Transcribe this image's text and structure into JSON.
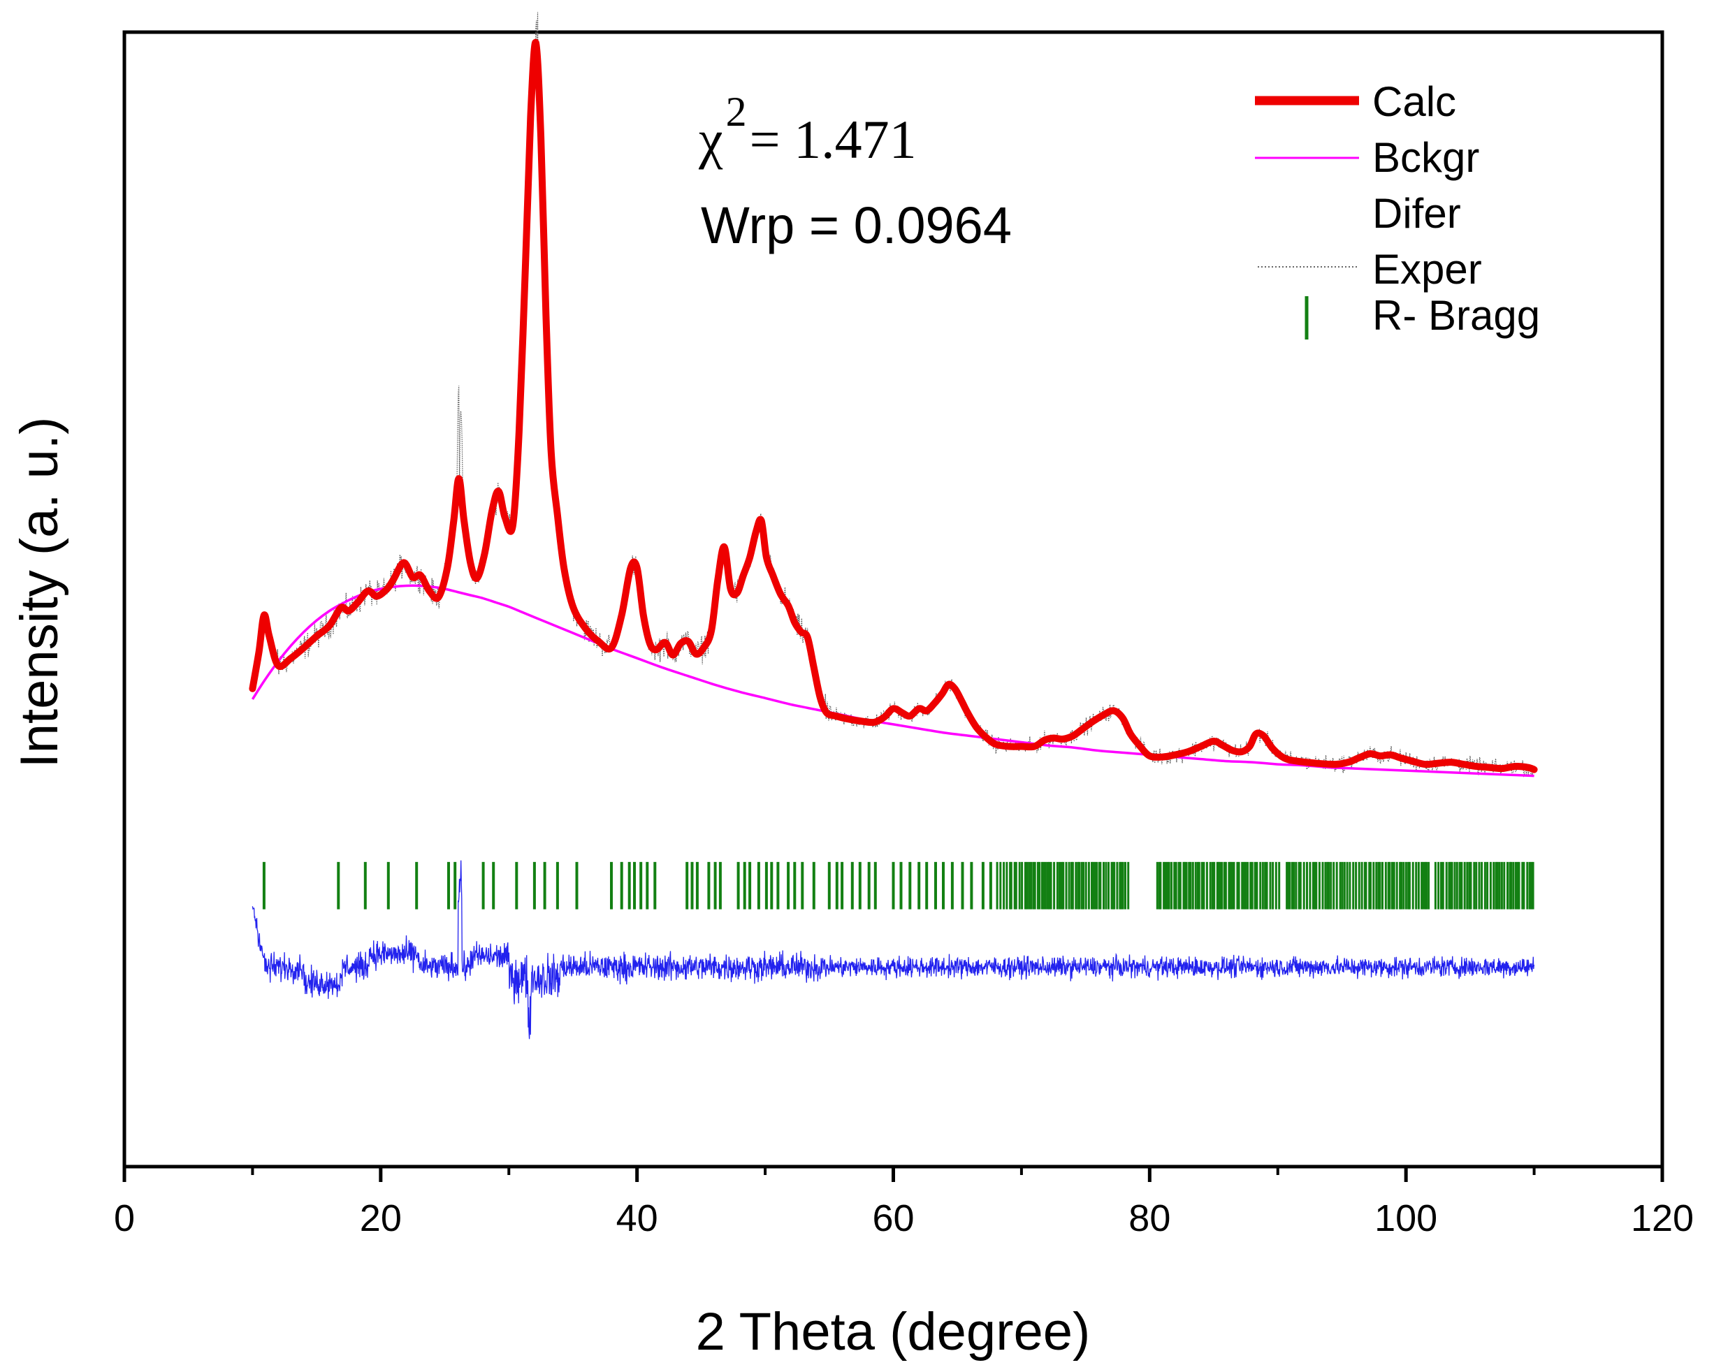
{
  "chart_data": {
    "type": "line",
    "title": "",
    "xlabel": "2 Theta (degree)",
    "ylabel": "Intensity (a. u.)",
    "xlim": [
      0,
      120
    ],
    "xticks": [
      0,
      20,
      40,
      60,
      80,
      100,
      120
    ],
    "xtick_labels": [
      "0",
      "20",
      "40",
      "60",
      "80",
      "100",
      "120"
    ],
    "ylim": [
      -8,
      100
    ],
    "y_tick_labels_shown": false,
    "grid": false,
    "legend_position": "top-right",
    "annotations": {
      "chi_symbol": "χ",
      "chi_exponent": "2",
      "chi_value": "= 1.471",
      "wrp": "Wrp = 0.0964"
    },
    "legend": [
      {
        "label": "Calc",
        "color": "#ee0000",
        "style": "thick-line"
      },
      {
        "label": "Bckgr",
        "color": "#ff00ff",
        "style": "thin-line"
      },
      {
        "label": "Difer",
        "color": "#2222ee",
        "style": "none"
      },
      {
        "label": "Exper",
        "color": "#555555",
        "style": "dotted"
      },
      {
        "label": "R- Bragg",
        "color": "#138013",
        "style": "tick"
      }
    ],
    "series": [
      {
        "name": "Calc",
        "color": "#ee0000",
        "x": [
          10,
          10.5,
          10.9,
          11.3,
          12,
          13,
          14,
          15,
          16,
          16.9,
          17.5,
          18.2,
          19,
          19.7,
          20.5,
          21,
          21.8,
          22.5,
          23.1,
          23.8,
          24.5,
          25.2,
          25.7,
          26.1,
          26.5,
          27,
          27.5,
          28.1,
          28.7,
          29.2,
          29.7,
          30.3,
          30.8,
          31.3,
          31.7,
          32.1,
          32.5,
          32.9,
          33.3,
          33.8,
          34.3,
          35,
          36,
          37,
          38,
          38.8,
          39.5,
          40,
          40.5,
          41,
          41.5,
          42.2,
          42.8,
          43.4,
          44,
          44.6,
          45.2,
          45.8,
          46.3,
          46.8,
          47.3,
          47.8,
          48.3,
          48.8,
          49.3,
          49.7,
          50.1,
          50.6,
          51.2,
          51.8,
          52.3,
          52.8,
          53.3,
          53.8,
          54.3,
          54.8,
          55.5,
          56.5,
          57.5,
          58.5,
          59.3,
          60,
          60.7,
          61.3,
          62,
          62.6,
          63.2,
          63.8,
          64.3,
          64.8,
          65.3,
          65.8,
          66.5,
          67.3,
          68,
          69,
          70,
          71,
          71.8,
          72.5,
          73.2,
          74,
          74.8,
          75.6,
          76.4,
          77.2,
          77.9,
          78.5,
          79.2,
          80,
          81,
          82,
          83,
          84,
          85,
          85.7,
          86.5,
          87.2,
          87.8,
          88.3,
          88.9,
          89.6,
          90.5,
          91.5,
          93,
          94.5,
          95.5,
          96.3,
          97.2,
          98,
          98.8,
          99.6,
          100.5,
          101.5,
          102.5,
          103.5,
          104.5,
          105.5,
          106.5,
          107.5,
          108.5,
          109.5,
          110
        ],
        "y": [
          37.5,
          41,
          44.5,
          42.5,
          39.7,
          40.4,
          41.4,
          42.5,
          43.5,
          45.2,
          44.9,
          45.7,
          46.8,
          46.3,
          47.0,
          47.9,
          49.5,
          48.1,
          48.3,
          46.8,
          46.2,
          49.0,
          53.5,
          57.5,
          53.5,
          49.5,
          48.0,
          50.3,
          54.5,
          56.3,
          53.8,
          53.0,
          62,
          78,
          92,
          99,
          90,
          73,
          60,
          54,
          49.0,
          45.3,
          43.2,
          42.0,
          41.4,
          44.5,
          49.0,
          49.0,
          44.5,
          41.8,
          41.2,
          41.9,
          40.7,
          41.8,
          42.0,
          40.8,
          41.4,
          43.0,
          47.8,
          51.0,
          47.0,
          46.6,
          48.3,
          50.0,
          52.5,
          53.5,
          50.0,
          48.3,
          46.5,
          45.4,
          43.8,
          42.9,
          42.4,
          39.5,
          36.6,
          35.2,
          34.9,
          34.6,
          34.4,
          34.3,
          34.8,
          35.6,
          35.2,
          34.9,
          35.6,
          35.4,
          36.1,
          37.0,
          37.9,
          37.5,
          36.4,
          35.2,
          33.8,
          32.8,
          32.2,
          32.0,
          32.0,
          32.0,
          32.6,
          32.8,
          32.7,
          33.0,
          33.7,
          34.4,
          35.0,
          35.4,
          34.7,
          33.2,
          32.1,
          31.1,
          31.0,
          31.2,
          31.5,
          32.0,
          32.5,
          32.1,
          31.6,
          31.5,
          32.0,
          33.2,
          33.0,
          31.8,
          30.9,
          30.6,
          30.4,
          30.3,
          30.5,
          30.9,
          31.3,
          31.1,
          31.2,
          30.9,
          30.6,
          30.3,
          30.4,
          30.5,
          30.3,
          30.1,
          30.0,
          29.9,
          30.1,
          30.0,
          29.8
        ]
      },
      {
        "name": "Bckgr",
        "color": "#ff00ff",
        "x": [
          10,
          11,
          12,
          13,
          14,
          15,
          16,
          17,
          18,
          19,
          20,
          21,
          22,
          23,
          24,
          25,
          26,
          27,
          28,
          29,
          30,
          31,
          32,
          33,
          34,
          35,
          36,
          38,
          40,
          42,
          44,
          46,
          48,
          50,
          52,
          54,
          56,
          58,
          60,
          62,
          64,
          66,
          68,
          70,
          72,
          74,
          76,
          78,
          80,
          82,
          84,
          86,
          88,
          90,
          92,
          94,
          96,
          98,
          100,
          102,
          104,
          106,
          108,
          110
        ],
        "y": [
          36.5,
          38.4,
          40.1,
          41.6,
          42.9,
          44.0,
          44.9,
          45.6,
          46.2,
          46.7,
          47.0,
          47.2,
          47.3,
          47.3,
          47.2,
          47.0,
          46.7,
          46.4,
          46.1,
          45.7,
          45.3,
          44.8,
          44.3,
          43.8,
          43.3,
          42.8,
          42.3,
          41.3,
          40.4,
          39.5,
          38.7,
          37.9,
          37.2,
          36.6,
          36.0,
          35.5,
          35.0,
          34.5,
          34.1,
          33.7,
          33.3,
          33.0,
          32.7,
          32.4,
          32.1,
          31.9,
          31.6,
          31.4,
          31.2,
          31.0,
          30.8,
          30.6,
          30.5,
          30.3,
          30.2,
          30.0,
          29.9,
          29.8,
          29.7,
          29.6,
          29.5,
          29.4,
          29.3,
          29.2
        ]
      },
      {
        "name": "Exper",
        "color": "#555555",
        "note": "noisy experimental points scattered around Calc; rendered procedurally as a dotted noisy trace with spikes at 26.2 and 32.3"
      },
      {
        "name": "Difer",
        "color": "#2222ee",
        "baseline_y": 11,
        "note": "difference curve (Exper - Calc) offset to the baseline; rendered procedurally as a dense noisy trace with a spike near 26.2"
      }
    ],
    "bragg_positions": {
      "color": "#138013",
      "y_range": [
        16.5,
        21
      ],
      "discrete": [
        10.9,
        16.7,
        18.8,
        20.6,
        22.8,
        25.3,
        25.8,
        28.0,
        28.8,
        30.6,
        32.0,
        32.8,
        33.8,
        35.3,
        38.0,
        38.8,
        39.4,
        39.8,
        40.3,
        40.8,
        41.4,
        43.9,
        44.3,
        44.7,
        45.6,
        46.1,
        46.5,
        47.9,
        48.4,
        48.8,
        49.5,
        50.1,
        50.5,
        51.0,
        51.8,
        52.3,
        52.9,
        53.8,
        55.0,
        55.6,
        56.0,
        56.8,
        57.4,
        58.1,
        58.6,
        60.0,
        60.6,
        61.3,
        62.0,
        62.6,
        63.3,
        63.9,
        64.6,
        65.4,
        66.1,
        67.0,
        67.6
      ],
      "dense_ranges": [
        [
          68.1,
          78.4
        ],
        [
          80.6,
          90.3
        ],
        [
          90.7,
          101.8
        ],
        [
          102.3,
          110.0
        ]
      ]
    }
  }
}
